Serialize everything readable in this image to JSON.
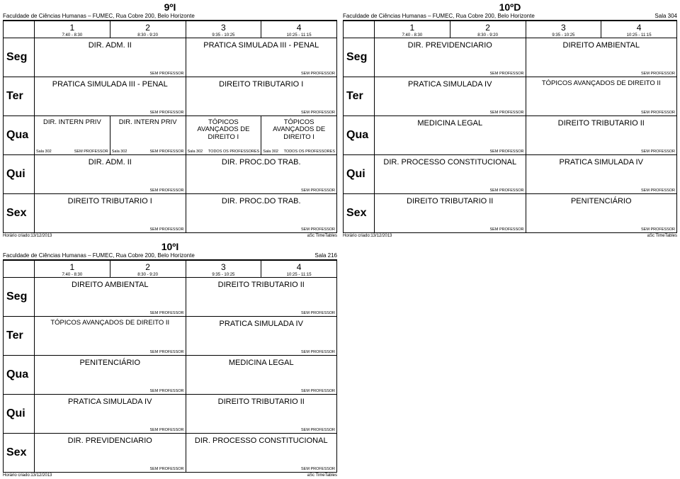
{
  "common": {
    "school": "Faculdade de Ciências Humanas – FUMEC, Rua Cobre 200, Belo Horizonte",
    "noprof": "SEM PROFESSOR",
    "allprof": "TODOS OS PROFESSORES",
    "room302": "Sala 302",
    "created": "Horário criado:13/12/2013",
    "vendor": "aSc TimeTables",
    "days": [
      "Seg",
      "Ter",
      "Qua",
      "Qui",
      "Sex"
    ],
    "periods": [
      {
        "n": "1",
        "t": "7:40 - 8:30"
      },
      {
        "n": "2",
        "t": "8:30 - 9:20"
      },
      {
        "n": "3",
        "t": "9:35 - 10:25"
      },
      {
        "n": "4",
        "t": "10:25 - 11:15"
      }
    ]
  },
  "sheets": [
    {
      "id": "s9i",
      "title": "9ºI",
      "roomlabel": "",
      "rows": [
        [
          {
            "span": 2,
            "subj": "DIR. ADM. II"
          },
          {
            "span": 2,
            "subj": "PRATICA SIMULADA III - PENAL"
          }
        ],
        [
          {
            "span": 2,
            "subj": "PRATICA SIMULADA III - PENAL"
          },
          {
            "span": 2,
            "subj": "DIREITO TRIBUTARIO I"
          }
        ],
        "_qua9i",
        [
          {
            "span": 2,
            "subj": "DIR. ADM. II"
          },
          {
            "span": 2,
            "subj": "DIR. PROC.DO TRAB."
          }
        ],
        [
          {
            "span": 2,
            "subj": "DIREITO TRIBUTARIO I"
          },
          {
            "span": 2,
            "subj": "DIR. PROC.DO TRAB."
          }
        ]
      ]
    },
    {
      "id": "s10d",
      "title": "10ºD",
      "roomlabel": "Sala 304",
      "rows": [
        [
          {
            "span": 2,
            "subj": "DIR. PREVIDENCIARIO"
          },
          {
            "span": 2,
            "subj": "DIREITO AMBIENTAL"
          }
        ],
        [
          {
            "span": 2,
            "subj": "PRATICA SIMULADA IV"
          },
          {
            "span": 2,
            "subj": "TÓPICOS AVANÇADOS DE DIREITO II",
            "small": true
          }
        ],
        [
          {
            "span": 2,
            "subj": "MEDICINA LEGAL"
          },
          {
            "span": 2,
            "subj": "DIREITO TRIBUTARIO II"
          }
        ],
        [
          {
            "span": 2,
            "subj": "DIR. PROCESSO CONSTITUCIONAL"
          },
          {
            "span": 2,
            "subj": "PRATICA SIMULADA IV"
          }
        ],
        [
          {
            "span": 2,
            "subj": "DIREITO TRIBUTARIO II"
          },
          {
            "span": 2,
            "subj": "PENITENCIÁRIO"
          }
        ]
      ]
    },
    {
      "id": "s10i",
      "title": "10ºI",
      "roomlabel": "Sala 216",
      "rows": [
        [
          {
            "span": 2,
            "subj": "DIREITO AMBIENTAL"
          },
          {
            "span": 2,
            "subj": "DIREITO TRIBUTARIO II"
          }
        ],
        [
          {
            "span": 2,
            "subj": "TÓPICOS AVANÇADOS DE DIREITO II",
            "small": true
          },
          {
            "span": 2,
            "subj": "PRATICA SIMULADA IV"
          }
        ],
        [
          {
            "span": 2,
            "subj": "PENITENCIÁRIO"
          },
          {
            "span": 2,
            "subj": "MEDICINA LEGAL"
          }
        ],
        [
          {
            "span": 2,
            "subj": "PRATICA SIMULADA IV"
          },
          {
            "span": 2,
            "subj": "DIREITO TRIBUTARIO II"
          }
        ],
        [
          {
            "span": 2,
            "subj": "DIR. PREVIDENCIARIO"
          },
          {
            "span": 2,
            "subj": "DIR. PROCESSO CONSTITUCIONAL"
          }
        ]
      ]
    }
  ],
  "qua9i": {
    "c1": {
      "subj": "DIR. INTERN PRIV"
    },
    "c2": {
      "subj": "DIR. INTERN PRIV"
    },
    "c3": {
      "subj": "TÓPICOS AVANÇADOS DE DIREITO I"
    },
    "c4": {
      "subj": "TÓPICOS AVANÇADOS DE DIREITO I"
    }
  }
}
